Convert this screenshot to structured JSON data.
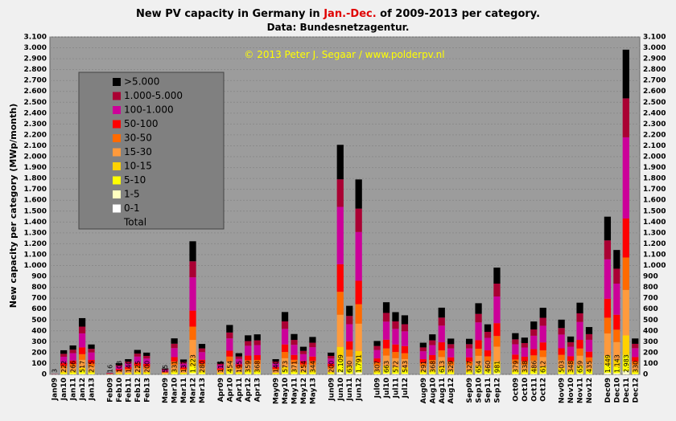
{
  "chart_data": {
    "type": "stacked_bar",
    "title": [
      "New PV capacity in Germany in ",
      "Jan.-Dec.",
      " of 2009-2013  per category."
    ],
    "subtitle": "Data: Bundesnetzagentur.",
    "annotation": "© 2013  Peter J. Segaar / www.polderpv.nl",
    "y_label": "New capacity per category (MWp/month)",
    "categories": [
      "Jan09",
      "Jan10",
      "Jan11",
      "Jan12",
      "Jan13",
      null,
      "Feb09",
      "Feb10",
      "Feb11",
      "Feb12",
      "Feb13",
      null,
      "Mar09",
      "Mar10",
      "Mar11",
      "Mar12",
      "Mar13",
      null,
      "Apr09",
      "Apr10",
      "Apr11",
      "Apr12",
      "Apr13",
      null,
      "May09",
      "May10",
      "May11",
      "May12",
      "May13",
      null,
      "Jun09",
      "Jun10",
      "Jun11",
      "Jun12",
      null,
      "Jul09",
      "Jul10",
      "Jul11",
      "Jul12",
      null,
      "Aug09",
      "Aug10",
      "Aug11",
      "Aug12",
      null,
      "Sep09",
      "Sep10",
      "Sep11",
      "Sep12",
      null,
      "Oct09",
      "Oct10",
      "Oct11",
      "Oct12",
      null,
      "Nov09",
      "Nov10",
      "Nov11",
      "Nov12",
      null,
      "Dec09",
      "Dec10",
      "Dec11",
      "Dec12"
    ],
    "series": [
      {
        "name": "0-1",
        "color": "#ffffff",
        "values": [
          0,
          0,
          0,
          0,
          0,
          null,
          0,
          0,
          0,
          0,
          0,
          null,
          0,
          0,
          0,
          0,
          0,
          null,
          0,
          0,
          0,
          0,
          0,
          null,
          0,
          0,
          0,
          0,
          0,
          null,
          0,
          0,
          0,
          0,
          null,
          0,
          0,
          0,
          0,
          null,
          0,
          0,
          0,
          0,
          null,
          0,
          0,
          0,
          0,
          null,
          0,
          0,
          0,
          0,
          null,
          0,
          0,
          0,
          0,
          null,
          0,
          0,
          0,
          0
        ]
      },
      {
        "name": "1-5",
        "color": "#ffffc0",
        "values": [
          0,
          2,
          3,
          5,
          3,
          null,
          0,
          1,
          1,
          2,
          2,
          null,
          1,
          3,
          1,
          12,
          3,
          null,
          1,
          5,
          2,
          4,
          4,
          null,
          1,
          6,
          4,
          3,
          3,
          null,
          2,
          21,
          6,
          18,
          null,
          3,
          7,
          6,
          5,
          null,
          3,
          4,
          6,
          3,
          null,
          3,
          7,
          5,
          10,
          null,
          4,
          3,
          5,
          6,
          null,
          5,
          3,
          7,
          4,
          null,
          14,
          11,
          30,
          3
        ]
      },
      {
        "name": "5-10",
        "color": "#ffff00",
        "values": [
          0,
          11,
          13,
          26,
          14,
          null,
          1,
          5,
          7,
          11,
          10,
          null,
          3,
          17,
          7,
          61,
          14,
          null,
          6,
          23,
          10,
          18,
          18,
          null,
          7,
          29,
          19,
          13,
          17,
          null,
          10,
          105,
          32,
          90,
          null,
          15,
          33,
          29,
          27,
          null,
          15,
          18,
          31,
          16,
          null,
          16,
          33,
          23,
          49,
          null,
          19,
          17,
          24,
          31,
          null,
          25,
          17,
          33,
          22,
          null,
          72,
          57,
          149,
          17
        ]
      },
      {
        "name": "10-15",
        "color": "#ffd200",
        "values": [
          0,
          13,
          16,
          31,
          17,
          null,
          1,
          6,
          8,
          14,
          12,
          null,
          3,
          20,
          8,
          73,
          17,
          null,
          7,
          27,
          12,
          22,
          22,
          null,
          8,
          34,
          22,
          15,
          21,
          null,
          12,
          127,
          38,
          107,
          null,
          18,
          40,
          34,
          33,
          null,
          17,
          22,
          37,
          20,
          null,
          20,
          39,
          28,
          59,
          null,
          23,
          20,
          29,
          37,
          null,
          30,
          21,
          40,
          26,
          null,
          87,
          69,
          179,
          20
        ]
      },
      {
        "name": "15-30",
        "color": "#ff9a3c",
        "values": [
          1,
          31,
          37,
          72,
          39,
          null,
          2,
          14,
          20,
          32,
          28,
          null,
          8,
          46,
          19,
          171,
          39,
          null,
          16,
          64,
          27,
          50,
          52,
          null,
          20,
          80,
          52,
          36,
          48,
          null,
          28,
          295,
          88,
          251,
          null,
          43,
          93,
          80,
          76,
          null,
          41,
          52,
          86,
          46,
          null,
          46,
          92,
          64,
          137,
          null,
          53,
          47,
          68,
          86,
          null,
          70,
          49,
          92,
          61,
          null,
          203,
          160,
          418,
          46
        ]
      },
      {
        "name": "30-50",
        "color": "#ff6a00",
        "values": [
          0,
          22,
          27,
          52,
          27,
          null,
          2,
          10,
          14,
          22,
          20,
          null,
          5,
          33,
          14,
          122,
          28,
          null,
          12,
          45,
          19,
          36,
          37,
          null,
          14,
          57,
          37,
          25,
          34,
          null,
          20,
          211,
          63,
          179,
          null,
          31,
          66,
          57,
          54,
          null,
          29,
          37,
          61,
          33,
          null,
          33,
          65,
          46,
          98,
          null,
          38,
          34,
          49,
          61,
          null,
          50,
          35,
          66,
          44,
          null,
          145,
          114,
          298,
          33
        ]
      },
      {
        "name": "50-100",
        "color": "#ff0000",
        "values": [
          1,
          27,
          32,
          62,
          33,
          null,
          2,
          12,
          17,
          27,
          24,
          null,
          7,
          40,
          16,
          147,
          34,
          null,
          14,
          54,
          23,
          43,
          44,
          null,
          17,
          69,
          45,
          30,
          41,
          null,
          24,
          253,
          76,
          215,
          null,
          37,
          80,
          69,
          65,
          null,
          35,
          44,
          74,
          39,
          null,
          39,
          78,
          55,
          118,
          null,
          45,
          41,
          58,
          73,
          null,
          60,
          42,
          79,
          52,
          null,
          174,
          137,
          358,
          40
        ]
      },
      {
        "name": "100-1.000",
        "color": "#cc0099",
        "values": [
          1,
          56,
          67,
          129,
          69,
          null,
          4,
          26,
          35,
          56,
          50,
          null,
          14,
          83,
          34,
          306,
          70,
          null,
          29,
          113,
          49,
          90,
          92,
          null,
          35,
          143,
          93,
          64,
          86,
          null,
          50,
          527,
          158,
          448,
          null,
          77,
          166,
          143,
          136,
          null,
          73,
          92,
          153,
          82,
          null,
          82,
          164,
          115,
          245,
          null,
          95,
          85,
          122,
          153,
          null,
          126,
          87,
          165,
          109,
          null,
          362,
          286,
          746,
          82
        ]
      },
      {
        "name": "1.000-5.000",
        "color": "#aa0033",
        "values": [
          0,
          27,
          32,
          62,
          33,
          null,
          2,
          12,
          17,
          27,
          24,
          null,
          7,
          40,
          16,
          147,
          34,
          null,
          14,
          54,
          23,
          43,
          44,
          null,
          17,
          69,
          45,
          30,
          41,
          null,
          24,
          253,
          76,
          215,
          null,
          37,
          80,
          69,
          65,
          null,
          35,
          44,
          74,
          39,
          null,
          39,
          78,
          55,
          118,
          null,
          45,
          41,
          58,
          73,
          null,
          60,
          42,
          79,
          52,
          null,
          174,
          137,
          358,
          40
        ]
      },
      {
        "name": ">5.000",
        "color": "#000000",
        "values": [
          0,
          33,
          39,
          78,
          40,
          null,
          2,
          17,
          21,
          34,
          30,
          null,
          7,
          49,
          22,
          184,
          41,
          null,
          16,
          69,
          30,
          53,
          55,
          null,
          21,
          86,
          54,
          38,
          53,
          null,
          30,
          317,
          93,
          268,
          null,
          46,
          98,
          85,
          82,
          null,
          43,
          55,
          91,
          51,
          null,
          49,
          98,
          69,
          147,
          null,
          57,
          50,
          73,
          92,
          null,
          77,
          52,
          98,
          65,
          null,
          218,
          172,
          447,
          49
        ]
      }
    ],
    "totals": {
      "name": "Total",
      "values": [
        3,
        222,
        266,
        517,
        275,
        null,
        16,
        103,
        140,
        225,
        200,
        null,
        55,
        331,
        137,
        1223,
        280,
        null,
        115,
        454,
        195,
        359,
        368,
        null,
        140,
        573,
        371,
        254,
        344,
        null,
        200,
        2109,
        630,
        1791,
        null,
        307,
        663,
        572,
        543,
        null,
        291,
        368,
        613,
        329,
        null,
        327,
        654,
        460,
        981,
        null,
        379,
        338,
        486,
        612,
        null,
        503,
        348,
        659,
        435,
        null,
        1449,
        1143,
        2983,
        330
      ],
      "value_labels": [
        "3",
        "222",
        "266",
        "517",
        "275",
        null,
        "16",
        "103",
        "140",
        "225",
        "200",
        null,
        "55",
        "331",
        "137",
        "1.223",
        "280",
        null,
        "115",
        "454",
        "195",
        "359",
        "368",
        null,
        "140",
        "573",
        "371",
        "254",
        "344",
        null,
        "200",
        "2.109",
        "630",
        "1.791",
        null,
        "307",
        "663",
        "572",
        "543",
        null,
        "291",
        "368",
        "613",
        "329",
        null,
        "327",
        "654",
        "460",
        "981",
        null,
        "379",
        "338",
        "486",
        "612",
        null,
        "503",
        "348",
        "659",
        "435",
        null,
        "1.449",
        "1.143",
        "2.983",
        "330"
      ]
    },
    "ylim": [
      0,
      3100
    ],
    "yticks": [
      0,
      100,
      200,
      300,
      400,
      500,
      600,
      700,
      800,
      900,
      {
        "value": 1000,
        "label": "1.000"
      },
      {
        "value": 1100,
        "label": "1.100"
      },
      {
        "value": 1200,
        "label": "1.200"
      },
      {
        "value": 1300,
        "label": "1.300"
      },
      {
        "value": 1400,
        "label": "1.400"
      },
      {
        "value": 1500,
        "label": "1.500"
      },
      {
        "value": 1600,
        "label": "1.600"
      },
      {
        "value": 1700,
        "label": "1.700"
      },
      {
        "value": 1800,
        "label": "1.800"
      },
      {
        "value": 1900,
        "label": "1.900"
      },
      {
        "value": 2000,
        "label": "2.000"
      },
      {
        "value": 2100,
        "label": "2.100"
      },
      {
        "value": 2200,
        "label": "2.200"
      },
      {
        "value": 2300,
        "label": "2.300"
      },
      {
        "value": 2400,
        "label": "2.400"
      },
      {
        "value": 2500,
        "label": "2.500"
      },
      {
        "value": 2600,
        "label": "2.600"
      },
      {
        "value": 2700,
        "label": "2.700"
      },
      {
        "value": 2800,
        "label": "2.800"
      },
      {
        "value": 2900,
        "label": "2.900"
      },
      {
        "value": 3000,
        "label": "3.000"
      },
      {
        "value": 3100,
        "label": "3.100"
      }
    ],
    "grid": true,
    "legend": "top-left"
  }
}
